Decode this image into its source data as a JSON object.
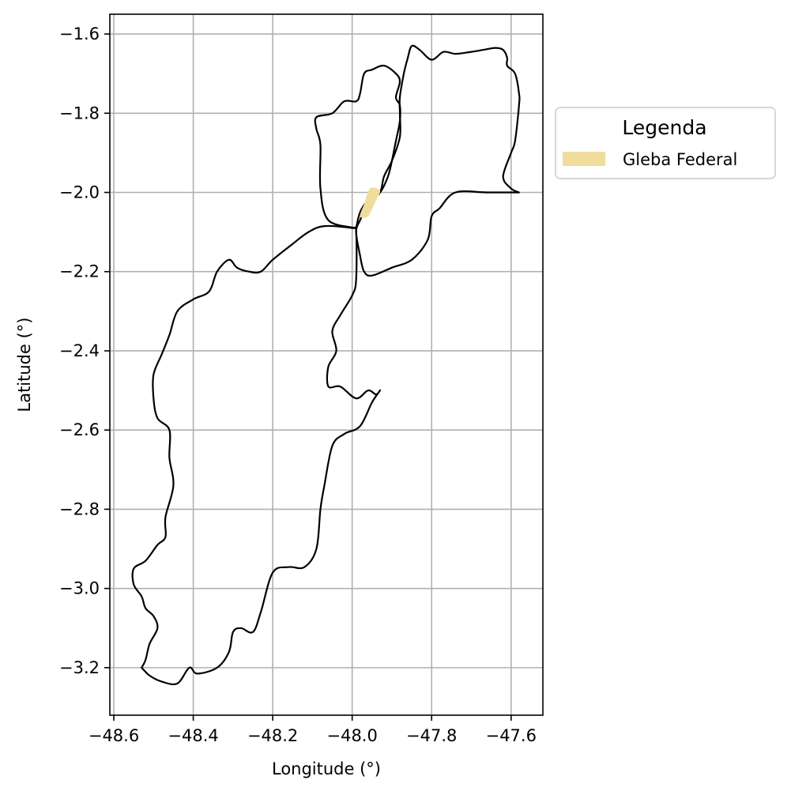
{
  "chart_data": {
    "type": "map",
    "xlabel": "Longitude (°)",
    "ylabel": "Latitude (°)",
    "xlim": [
      -48.61,
      -47.52
    ],
    "ylim": [
      -3.32,
      -1.55
    ],
    "grid": true,
    "x_ticks": [
      -48.6,
      -48.4,
      -48.2,
      -48.0,
      -47.8,
      -47.6
    ],
    "y_ticks": [
      -1.6,
      -1.8,
      -2.0,
      -2.2,
      -2.4,
      -2.6,
      -2.8,
      -3.0,
      -3.2
    ],
    "x_tick_labels": [
      "−48.6",
      "−48.4",
      "−48.2",
      "−48.0",
      "−47.8",
      "−47.6"
    ],
    "y_tick_labels": [
      "−1.6",
      "−1.8",
      "−2.0",
      "−2.2",
      "−2.4",
      "−2.6",
      "−2.8",
      "−3.0",
      "−3.2"
    ],
    "legend": {
      "title": "Legenda",
      "placement": "outside-right-top",
      "entries": [
        {
          "label": "Gleba Federal",
          "color": "#f0dd9c"
        }
      ]
    },
    "layers": [
      {
        "name": "southwest-municipality",
        "kind": "outline",
        "color": "#000000",
        "points": [
          [
            -48.53,
            -3.2
          ],
          [
            -48.51,
            -3.22
          ],
          [
            -48.48,
            -3.235
          ],
          [
            -48.44,
            -3.24
          ],
          [
            -48.41,
            -3.2
          ],
          [
            -48.39,
            -3.215
          ],
          [
            -48.34,
            -3.2
          ],
          [
            -48.31,
            -3.16
          ],
          [
            -48.3,
            -3.11
          ],
          [
            -48.28,
            -3.1
          ],
          [
            -48.25,
            -3.11
          ],
          [
            -48.23,
            -3.06
          ],
          [
            -48.2,
            -2.96
          ],
          [
            -48.16,
            -2.946
          ],
          [
            -48.12,
            -2.946
          ],
          [
            -48.09,
            -2.9
          ],
          [
            -48.08,
            -2.8
          ],
          [
            -48.07,
            -2.74
          ],
          [
            -48.05,
            -2.64
          ],
          [
            -48.02,
            -2.61
          ],
          [
            -47.98,
            -2.59
          ],
          [
            -47.95,
            -2.53
          ],
          [
            -47.93,
            -2.5
          ],
          [
            -47.94,
            -2.51
          ],
          [
            -47.96,
            -2.5
          ],
          [
            -47.99,
            -2.52
          ],
          [
            -48.03,
            -2.49
          ],
          [
            -48.06,
            -2.49
          ],
          [
            -48.06,
            -2.44
          ],
          [
            -48.04,
            -2.4
          ],
          [
            -48.05,
            -2.35
          ],
          [
            -48.03,
            -2.31
          ],
          [
            -48.0,
            -2.26
          ],
          [
            -47.99,
            -2.22
          ],
          [
            -47.99,
            -2.1
          ],
          [
            -48.0,
            -2.09
          ],
          [
            -48.07,
            -2.085
          ],
          [
            -48.11,
            -2.1
          ],
          [
            -48.15,
            -2.13
          ],
          [
            -48.2,
            -2.17
          ],
          [
            -48.23,
            -2.2
          ],
          [
            -48.26,
            -2.2
          ],
          [
            -48.29,
            -2.19
          ],
          [
            -48.31,
            -2.17
          ],
          [
            -48.34,
            -2.2
          ],
          [
            -48.36,
            -2.25
          ],
          [
            -48.4,
            -2.27
          ],
          [
            -48.44,
            -2.3
          ],
          [
            -48.46,
            -2.36
          ],
          [
            -48.48,
            -2.41
          ],
          [
            -48.5,
            -2.46
          ],
          [
            -48.5,
            -2.52
          ],
          [
            -48.49,
            -2.57
          ],
          [
            -48.46,
            -2.6
          ],
          [
            -48.46,
            -2.67
          ],
          [
            -48.45,
            -2.74
          ],
          [
            -48.47,
            -2.82
          ],
          [
            -48.47,
            -2.87
          ],
          [
            -48.49,
            -2.89
          ],
          [
            -48.52,
            -2.93
          ],
          [
            -48.55,
            -2.95
          ],
          [
            -48.55,
            -2.99
          ],
          [
            -48.53,
            -3.02
          ],
          [
            -48.52,
            -3.05
          ],
          [
            -48.5,
            -3.07
          ],
          [
            -48.49,
            -3.1
          ],
          [
            -48.51,
            -3.14
          ],
          [
            -48.52,
            -3.18
          ],
          [
            -48.53,
            -3.2
          ]
        ]
      },
      {
        "name": "north-central-municipality",
        "kind": "outline",
        "color": "#000000",
        "points": [
          [
            -47.99,
            -2.09
          ],
          [
            -48.06,
            -2.07
          ],
          [
            -48.08,
            -1.99
          ],
          [
            -48.08,
            -1.88
          ],
          [
            -48.09,
            -1.84
          ],
          [
            -48.09,
            -1.81
          ],
          [
            -48.05,
            -1.8
          ],
          [
            -48.02,
            -1.77
          ],
          [
            -47.99,
            -1.77
          ],
          [
            -47.98,
            -1.75
          ],
          [
            -47.97,
            -1.7
          ],
          [
            -47.95,
            -1.69
          ],
          [
            -47.92,
            -1.68
          ],
          [
            -47.89,
            -1.7
          ],
          [
            -47.88,
            -1.72
          ],
          [
            -47.89,
            -1.76
          ],
          [
            -47.88,
            -1.78
          ],
          [
            -47.88,
            -1.82
          ],
          [
            -47.89,
            -1.87
          ],
          [
            -47.9,
            -1.92
          ],
          [
            -47.91,
            -1.96
          ],
          [
            -47.93,
            -2.0
          ],
          [
            -47.96,
            -2.02
          ],
          [
            -47.98,
            -2.05
          ],
          [
            -47.99,
            -2.09
          ]
        ]
      },
      {
        "name": "northeast-municipality",
        "kind": "outline",
        "color": "#000000",
        "points": [
          [
            -47.58,
            -2.0
          ],
          [
            -47.6,
            -1.99
          ],
          [
            -47.62,
            -1.96
          ],
          [
            -47.6,
            -1.9
          ],
          [
            -47.59,
            -1.87
          ],
          [
            -47.58,
            -1.78
          ],
          [
            -47.58,
            -1.75
          ],
          [
            -47.59,
            -1.7
          ],
          [
            -47.61,
            -1.68
          ],
          [
            -47.61,
            -1.66
          ],
          [
            -47.62,
            -1.64
          ],
          [
            -47.64,
            -1.635
          ],
          [
            -47.67,
            -1.64
          ],
          [
            -47.7,
            -1.645
          ],
          [
            -47.74,
            -1.65
          ],
          [
            -47.77,
            -1.645
          ],
          [
            -47.8,
            -1.665
          ],
          [
            -47.83,
            -1.64
          ],
          [
            -47.85,
            -1.63
          ],
          [
            -47.86,
            -1.66
          ],
          [
            -47.87,
            -1.7
          ],
          [
            -47.88,
            -1.76
          ],
          [
            -47.88,
            -1.8
          ],
          [
            -47.88,
            -1.86
          ],
          [
            -47.9,
            -1.92
          ],
          [
            -47.92,
            -1.96
          ],
          [
            -47.93,
            -2.0
          ],
          [
            -47.96,
            -2.03
          ],
          [
            -47.98,
            -2.07
          ],
          [
            -47.99,
            -2.1
          ],
          [
            -47.98,
            -2.16
          ],
          [
            -47.97,
            -2.2
          ],
          [
            -47.95,
            -2.21
          ],
          [
            -47.9,
            -2.19
          ],
          [
            -47.85,
            -2.17
          ],
          [
            -47.81,
            -2.12
          ],
          [
            -47.8,
            -2.06
          ],
          [
            -47.78,
            -2.04
          ],
          [
            -47.74,
            -2.0
          ],
          [
            -47.66,
            -2.0
          ],
          [
            -47.58,
            -2.0
          ]
        ]
      },
      {
        "name": "gleba-federal",
        "kind": "fill",
        "color": "#f0dd9c",
        "points": [
          [
            -47.97,
            -2.03
          ],
          [
            -47.955,
            -1.99
          ],
          [
            -47.93,
            -1.995
          ],
          [
            -47.94,
            -2.02
          ],
          [
            -47.96,
            -2.06
          ],
          [
            -47.98,
            -2.06
          ],
          [
            -47.97,
            -2.03
          ]
        ]
      }
    ]
  }
}
